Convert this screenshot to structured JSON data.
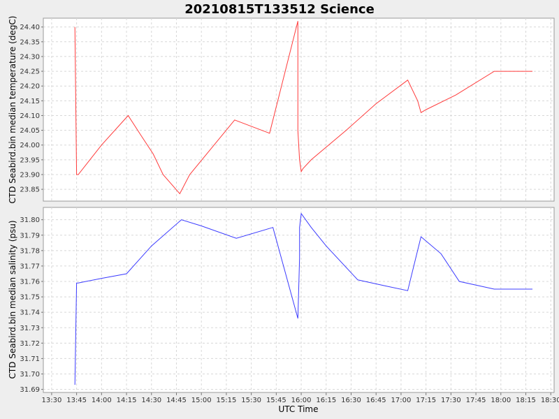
{
  "chart_data": {
    "type": "line",
    "title": "20210815T133512 Science",
    "xlabel": "UTC Time",
    "x_ticks": [
      "13:30",
      "13:45",
      "14:00",
      "14:15",
      "14:30",
      "14:45",
      "15:00",
      "15:15",
      "15:30",
      "15:45",
      "16:00",
      "16:15",
      "16:30",
      "16:45",
      "17:00",
      "17:15",
      "17:30",
      "17:45",
      "18:00",
      "18:15",
      "18:30"
    ],
    "xlim": [
      "13:25",
      "18:32"
    ],
    "grid": true,
    "legend": "none",
    "panels": [
      {
        "ylabel": "CTD Seabird.bin median temperature (degC)",
        "color": "#ff3b3b",
        "ylim": [
          23.81,
          24.43
        ],
        "y_ticks": [
          "23.85",
          "23.90",
          "23.95",
          "24.00",
          "24.05",
          "24.10",
          "24.15",
          "24.20",
          "24.25",
          "24.30",
          "24.35",
          "24.40"
        ],
        "x": [
          "13:44",
          "13:45",
          "13:46",
          "14:00",
          "14:16",
          "14:24",
          "14:31",
          "14:37",
          "14:47",
          "14:53",
          "15:20",
          "15:41",
          "15:58",
          "15:58",
          "15:59",
          "16:00",
          "16:01",
          "16:06",
          "16:27",
          "16:45",
          "17:04",
          "17:10",
          "17:12",
          "17:15",
          "17:33",
          "17:56",
          "18:19"
        ],
        "y": [
          24.4,
          23.9,
          23.9,
          24.0,
          24.1,
          24.03,
          23.97,
          23.9,
          23.835,
          23.9,
          24.085,
          24.04,
          24.42,
          24.05,
          23.95,
          23.91,
          23.92,
          23.95,
          24.05,
          24.14,
          24.22,
          24.15,
          24.11,
          24.12,
          24.17,
          24.25,
          24.25
        ]
      },
      {
        "ylabel": "CTD Seabird.bin median salinity (psu)",
        "color": "#3b3bff",
        "ylim": [
          31.688,
          31.808
        ],
        "y_ticks": [
          "31.69",
          "31.70",
          "31.71",
          "31.72",
          "31.73",
          "31.74",
          "31.75",
          "31.76",
          "31.77",
          "31.78",
          "31.79",
          "31.80"
        ],
        "x": [
          "13:44",
          "13:45",
          "13:46",
          "14:00",
          "14:15",
          "14:30",
          "14:48",
          "15:00",
          "15:21",
          "15:43",
          "15:58",
          "15:59",
          "15:59",
          "16:00",
          "16:06",
          "16:15",
          "16:34",
          "16:51",
          "17:04",
          "17:12",
          "17:24",
          "17:35",
          "17:56",
          "18:19"
        ],
        "y": [
          31.693,
          31.759,
          31.759,
          31.762,
          31.765,
          31.783,
          31.8,
          31.796,
          31.788,
          31.795,
          31.736,
          31.775,
          31.795,
          31.804,
          31.795,
          31.783,
          31.761,
          31.757,
          31.754,
          31.789,
          31.778,
          31.76,
          31.755,
          31.755
        ]
      }
    ]
  }
}
